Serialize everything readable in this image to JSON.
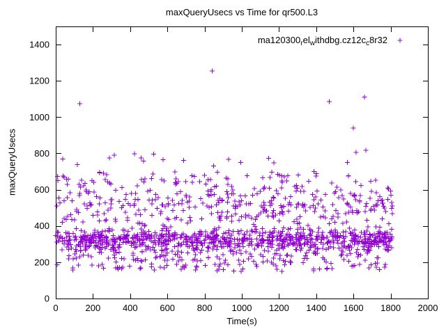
{
  "chart_data": {
    "type": "scatter",
    "title": "maxQueryUsecs vs Time for qr500.L3",
    "xlabel": "Time(s)",
    "ylabel": "maxQueryUsecs",
    "xlim": [
      0,
      2000
    ],
    "ylim": [
      0,
      1500
    ],
    "x_ticks": [
      0,
      200,
      400,
      600,
      800,
      1000,
      1200,
      1400,
      1600,
      1800,
      2000
    ],
    "y_ticks": [
      0,
      200,
      400,
      600,
      800,
      1000,
      1200,
      1400
    ],
    "grid": false,
    "legend": {
      "position": "top-right-inside",
      "series_name_plain": "ma120300_rel_withdbg.cz12c_c8r32",
      "segments": [
        {
          "t": "ma120300",
          "sub": false
        },
        {
          "t": "r",
          "sub": true
        },
        {
          "t": "el",
          "sub": false
        },
        {
          "t": "w",
          "sub": true
        },
        {
          "t": "ithdbg.cz12c",
          "sub": false
        },
        {
          "t": "c",
          "sub": true
        },
        {
          "t": "8r32",
          "sub": false
        }
      ]
    },
    "marker": {
      "shape": "plus",
      "color": "#9400d3",
      "size": 7
    },
    "series": [
      {
        "name": "ma120300_rel_withdbg.cz12c_c8r32",
        "x_range": [
          0,
          1810
        ],
        "n_points": 1500,
        "seed": 1234,
        "y_distribution": {
          "mixture": [
            {
              "weight": 0.5,
              "type": "normal",
              "mean": 325,
              "sd": 28
            },
            {
              "weight": 0.2,
              "type": "normal",
              "mean": 480,
              "sd": 70
            },
            {
              "weight": 0.18,
              "type": "uniform",
              "min": 150,
              "max": 300
            },
            {
              "weight": 0.1,
              "type": "uniform",
              "min": 500,
              "max": 700
            },
            {
              "weight": 0.02,
              "type": "uniform",
              "min": 700,
              "max": 820
            }
          ],
          "clip": [
            140,
            830
          ]
        },
        "outliers": [
          [
            130,
            1075
          ],
          [
            840,
            1255
          ],
          [
            1470,
            1085
          ],
          [
            1600,
            940
          ],
          [
            1660,
            1110
          ]
        ]
      }
    ]
  }
}
